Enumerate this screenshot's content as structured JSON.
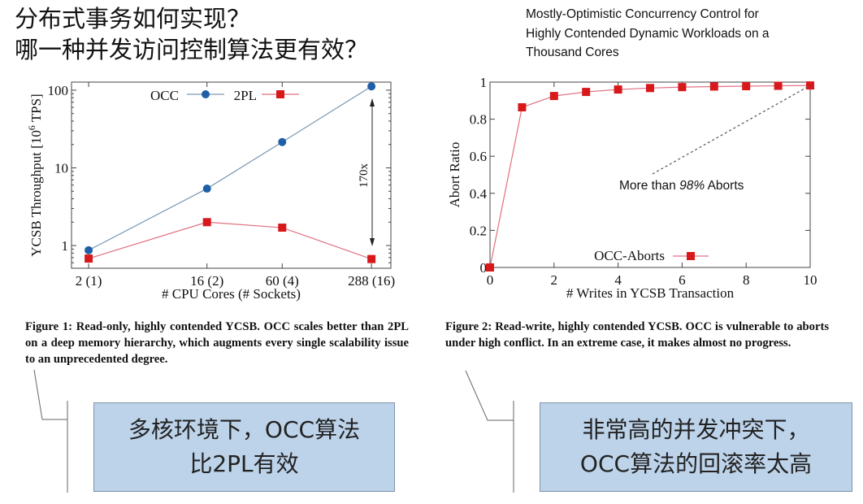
{
  "slide": {
    "title_lines": [
      "分布式事务如何实现？",
      "哪一种并发访问控制算法更有效？"
    ],
    "paper_title_lines": [
      "Mostly-Optimistic Concurrency Control for",
      "Highly Contended Dynamic Workloads on a",
      "Thousand Cores"
    ],
    "figure1_caption": "Figure 1:  Read-only, highly contended YCSB. OCC scales better than 2PL on a deep memory hierarchy, which augments every single scalability issue to an unprecedented degree.",
    "figure2_caption": "Figure 2:  Read-write, highly contended YCSB. OCC is vulnerable to aborts under high conflict. In an extreme case, it makes almost no progress.",
    "callout1_lines": [
      "多核环境下，OCC算法",
      "比2PL有效"
    ],
    "callout2_lines": [
      "非常高的并发冲突下，",
      "OCC算法的回滚率太高"
    ],
    "callout_color": "#bdd3ea"
  },
  "chart_data": [
    {
      "type": "line",
      "xlabel": "# CPU Cores (# Sockets)",
      "ylabel": "YCSB Throughput [10^6 TPS]",
      "x": [
        2,
        16,
        60,
        288
      ],
      "x_tick_labels": [
        "2 (1)",
        "16 (2)",
        "60 (4)",
        "288 (16)"
      ],
      "x_scale": "log",
      "xlim": [
        1.48,
        405
      ],
      "y_scale": "log",
      "ylim": [
        0.51,
        127
      ],
      "y_ticks": [
        1,
        10,
        100
      ],
      "y_tick_labels": [
        "1",
        "10",
        "100"
      ],
      "grid": false,
      "legend_placement": "top",
      "series": [
        {
          "name": "OCC",
          "values": [
            0.87,
            5.4,
            21.5,
            112
          ],
          "color": "#1f5fa8",
          "line_color": "#7a97b2",
          "marker": "circle"
        },
        {
          "name": "2PL",
          "values": [
            0.68,
            2.0,
            1.7,
            0.67
          ],
          "color": "#d7191c",
          "line_color": "#e07080",
          "marker": "square"
        }
      ],
      "annotation": "170x"
    },
    {
      "type": "line",
      "xlabel": "# Writes in YCSB Transaction",
      "ylabel": "Abort Ratio",
      "x": [
        0,
        1,
        2,
        3,
        4,
        5,
        6,
        7,
        8,
        9,
        10
      ],
      "x_ticks": [
        0,
        2,
        4,
        6,
        8,
        10
      ],
      "xlim": [
        0,
        10
      ],
      "ylim": [
        0,
        1
      ],
      "y_ticks": [
        0,
        0.2,
        0.4,
        0.6,
        0.8,
        1
      ],
      "y_tick_labels": [
        "0",
        "0.2",
        "0.4",
        "0.6",
        "0.8",
        "1"
      ],
      "grid": false,
      "legend_placement": "bottom-center",
      "series": [
        {
          "name": "OCC-Aborts",
          "values": [
            0,
            0.864,
            0.925,
            0.947,
            0.96,
            0.968,
            0.973,
            0.976,
            0.978,
            0.98,
            0.982
          ],
          "color": "#d7191c",
          "line_color": "#e07080",
          "marker": "square"
        }
      ],
      "annotation": {
        "prefix": "More than ",
        "emphasis": "98%",
        "suffix": " Aborts"
      }
    }
  ]
}
